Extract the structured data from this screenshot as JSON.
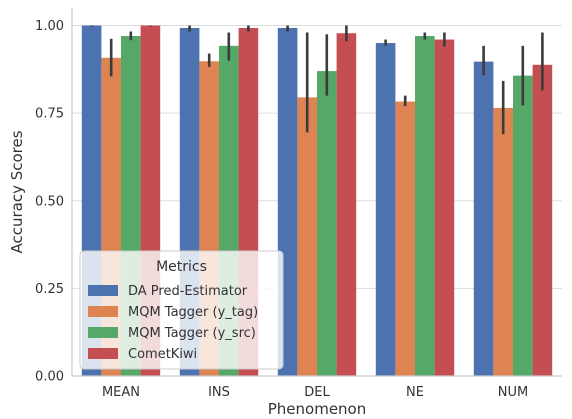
{
  "chart_data": {
    "type": "bar",
    "title": "",
    "xlabel": "Phenomenon",
    "ylabel": "Accuracy Scores",
    "ylim": [
      0,
      1.05
    ],
    "yticks": [
      0.0,
      0.25,
      0.5,
      0.75,
      1.0
    ],
    "ytick_labels": [
      "0.00",
      "0.25",
      "0.50",
      "0.75",
      "1.00"
    ],
    "grid": "horizontal",
    "categories": [
      "MEAN",
      "INS",
      "DEL",
      "NE",
      "NUM"
    ],
    "series": [
      {
        "name": "DA Pred-Estimator",
        "color": "#4c72b0",
        "values": [
          1.0,
          0.993,
          0.993,
          0.95,
          0.897
        ],
        "err_low": [
          0.997,
          0.983,
          0.983,
          0.943,
          0.858
        ],
        "err_high": [
          1.0,
          1.0,
          1.0,
          0.96,
          0.942
        ]
      },
      {
        "name": "MQM Tagger (y_tag)",
        "color": "#dd8452",
        "values": [
          0.908,
          0.898,
          0.795,
          0.783,
          0.765
        ],
        "err_low": [
          0.855,
          0.882,
          0.695,
          0.77,
          0.69
        ],
        "err_high": [
          0.962,
          0.92,
          0.98,
          0.8,
          0.842
        ]
      },
      {
        "name": "MQM Tagger (y_src)",
        "color": "#55a868",
        "values": [
          0.97,
          0.942,
          0.87,
          0.97,
          0.857
        ],
        "err_low": [
          0.958,
          0.9,
          0.8,
          0.96,
          0.772
        ],
        "err_high": [
          0.983,
          0.98,
          0.975,
          0.98,
          0.942
        ]
      },
      {
        "name": "CometKiwi",
        "color": "#c44e52",
        "values": [
          1.0,
          0.993,
          0.978,
          0.96,
          0.888
        ],
        "err_low": [
          0.997,
          0.983,
          0.955,
          0.94,
          0.815
        ],
        "err_high": [
          1.0,
          1.0,
          1.0,
          0.98,
          0.98
        ]
      }
    ],
    "legend": {
      "title": "Metrics",
      "position": "lower-left"
    }
  }
}
